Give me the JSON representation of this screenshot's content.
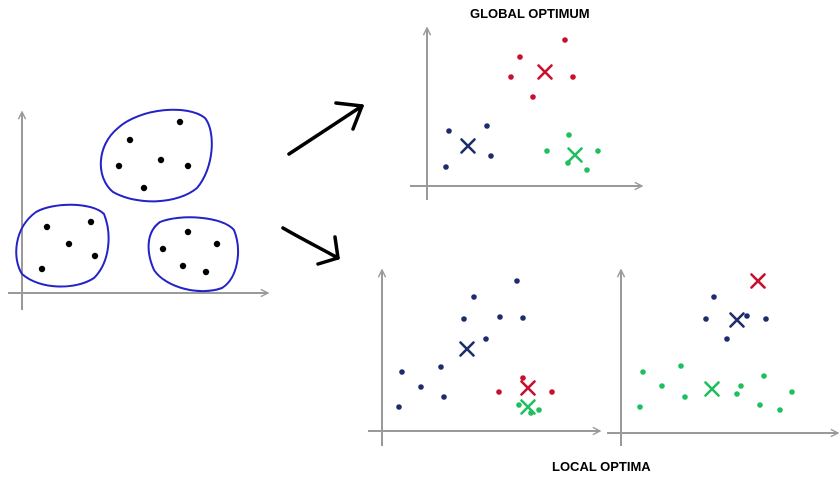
{
  "labels": {
    "global": "GLOBAL OPTIMUM",
    "local": "LOCAL OPTIMA"
  },
  "colors": {
    "axis": "#9a9a9a",
    "ink": "#000000",
    "outline": "#2323c8",
    "navy": "#1c2d6b",
    "red": "#c8102e",
    "green": "#1fbf5f"
  },
  "panels": [
    {
      "id": "raw-data",
      "clusters": [
        {
          "color": "ink",
          "outline": true,
          "points": [
            [
              130,
              140
            ],
            [
              180,
              122
            ],
            [
              119,
              166
            ],
            [
              161,
              160
            ],
            [
              188,
              166
            ],
            [
              144,
              188
            ]
          ]
        },
        {
          "color": "ink",
          "outline": true,
          "points": [
            [
              47,
              227
            ],
            [
              91,
              222
            ],
            [
              69,
              244
            ],
            [
              95,
              256
            ],
            [
              42,
              269
            ]
          ]
        },
        {
          "color": "ink",
          "outline": true,
          "points": [
            [
              188,
              232
            ],
            [
              217,
              244
            ],
            [
              163,
              249
            ],
            [
              183,
              266
            ],
            [
              206,
              272
            ]
          ]
        }
      ]
    },
    {
      "id": "global-optimum",
      "clusters": [
        {
          "color": "red",
          "centroid": [
            545,
            72
          ],
          "points": [
            [
              520,
              57
            ],
            [
              565,
              40
            ],
            [
              511,
              77
            ],
            [
              573,
              77
            ],
            [
              533,
              97
            ]
          ]
        },
        {
          "color": "navy",
          "centroid": [
            468,
            146
          ],
          "points": [
            [
              449,
              131
            ],
            [
              487,
              126
            ],
            [
              491,
              156
            ],
            [
              446,
              167
            ]
          ]
        },
        {
          "color": "green",
          "centroid": [
            575,
            155
          ],
          "points": [
            [
              569,
              135
            ],
            [
              547,
              151
            ],
            [
              598,
              151
            ],
            [
              568,
              163
            ],
            [
              587,
              170
            ]
          ]
        }
      ]
    },
    {
      "id": "local-optimum-1",
      "clusters": [
        {
          "color": "navy",
          "centroid": [
            467,
            349
          ],
          "points": [
            [
              474,
              297
            ],
            [
              517,
              281
            ],
            [
              464,
              319
            ],
            [
              500,
              317
            ],
            [
              523,
              318
            ],
            [
              486,
              339
            ],
            [
              402,
              372
            ],
            [
              441,
              367
            ],
            [
              421,
              387
            ],
            [
              444,
              397
            ],
            [
              399,
              407
            ]
          ]
        },
        {
          "color": "red",
          "centroid": [
            528,
            388
          ],
          "points": [
            [
              523,
              378
            ],
            [
              499,
              392
            ],
            [
              552,
              392
            ]
          ]
        },
        {
          "color": "green",
          "centroid": [
            528,
            407
          ],
          "points": [
            [
              519,
              405
            ],
            [
              531,
              413
            ],
            [
              539,
              410
            ]
          ]
        }
      ]
    },
    {
      "id": "local-optimum-2",
      "clusters": [
        {
          "color": "red",
          "centroid": [
            758,
            281
          ],
          "points": []
        },
        {
          "color": "navy",
          "centroid": [
            737,
            320
          ],
          "points": [
            [
              714,
              297
            ],
            [
              706,
              319
            ],
            [
              747,
              316
            ],
            [
              766,
              319
            ],
            [
              727,
              339
            ]
          ]
        },
        {
          "color": "green",
          "centroid": [
            712,
            389
          ],
          "points": [
            [
              643,
              372
            ],
            [
              681,
              366
            ],
            [
              764,
              376
            ],
            [
              662,
              386
            ],
            [
              741,
              386
            ],
            [
              792,
              392
            ],
            [
              685,
              397
            ],
            [
              737,
              394
            ],
            [
              640,
              407
            ],
            [
              760,
              405
            ],
            [
              780,
              410
            ]
          ]
        }
      ]
    }
  ]
}
